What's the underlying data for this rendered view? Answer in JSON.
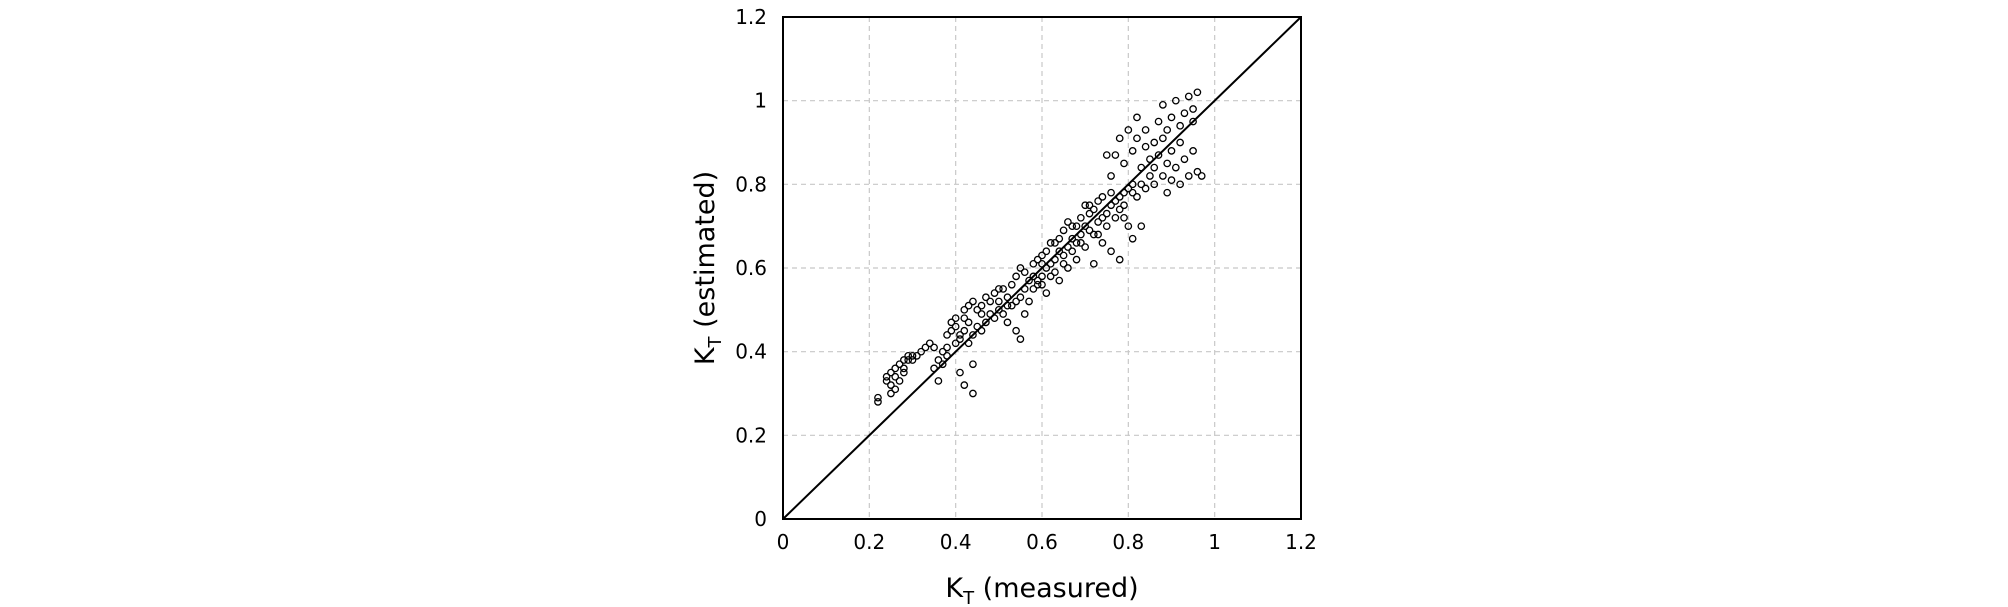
{
  "chart_data": {
    "type": "scatter",
    "xlabel": {
      "main": "K",
      "sub": "T",
      "rest": " (measured)"
    },
    "ylabel": {
      "main": "K",
      "sub": "T",
      "rest": " (estimated)"
    },
    "xlim": [
      0,
      1.2
    ],
    "ylim": [
      0,
      1.2
    ],
    "x_ticks": [
      "0",
      "0.2",
      "0.4",
      "0.6",
      "0.8",
      "1",
      "1.2"
    ],
    "y_ticks": [
      "0",
      "0.2",
      "0.4",
      "0.6",
      "0.8",
      "1",
      "1.2"
    ],
    "grid": true,
    "reference_line": {
      "type": "identity",
      "from": [
        0,
        0
      ],
      "to": [
        1.2,
        1.2
      ]
    },
    "series": [
      {
        "marker": "open-circle",
        "points": [
          [
            0.22,
            0.29
          ],
          [
            0.22,
            0.28
          ],
          [
            0.24,
            0.34
          ],
          [
            0.24,
            0.33
          ],
          [
            0.25,
            0.32
          ],
          [
            0.25,
            0.35
          ],
          [
            0.26,
            0.36
          ],
          [
            0.26,
            0.31
          ],
          [
            0.27,
            0.37
          ],
          [
            0.27,
            0.33
          ],
          [
            0.28,
            0.38
          ],
          [
            0.28,
            0.35
          ],
          [
            0.29,
            0.38
          ],
          [
            0.29,
            0.39
          ],
          [
            0.3,
            0.38
          ],
          [
            0.31,
            0.39
          ],
          [
            0.32,
            0.4
          ],
          [
            0.33,
            0.41
          ],
          [
            0.34,
            0.42
          ],
          [
            0.35,
            0.36
          ],
          [
            0.36,
            0.33
          ],
          [
            0.36,
            0.38
          ],
          [
            0.37,
            0.37
          ],
          [
            0.37,
            0.4
          ],
          [
            0.38,
            0.41
          ],
          [
            0.38,
            0.44
          ],
          [
            0.39,
            0.45
          ],
          [
            0.39,
            0.47
          ],
          [
            0.4,
            0.46
          ],
          [
            0.4,
            0.48
          ],
          [
            0.4,
            0.42
          ],
          [
            0.41,
            0.43
          ],
          [
            0.41,
            0.44
          ],
          [
            0.41,
            0.35
          ],
          [
            0.42,
            0.45
          ],
          [
            0.42,
            0.5
          ],
          [
            0.42,
            0.32
          ],
          [
            0.43,
            0.51
          ],
          [
            0.43,
            0.47
          ],
          [
            0.43,
            0.42
          ],
          [
            0.44,
            0.44
          ],
          [
            0.44,
            0.52
          ],
          [
            0.44,
            0.3
          ],
          [
            0.44,
            0.37
          ],
          [
            0.45,
            0.5
          ],
          [
            0.45,
            0.46
          ],
          [
            0.46,
            0.51
          ],
          [
            0.46,
            0.45
          ],
          [
            0.47,
            0.47
          ],
          [
            0.47,
            0.53
          ],
          [
            0.48,
            0.52
          ],
          [
            0.48,
            0.49
          ],
          [
            0.49,
            0.54
          ],
          [
            0.49,
            0.48
          ],
          [
            0.5,
            0.5
          ],
          [
            0.5,
            0.52
          ],
          [
            0.51,
            0.55
          ],
          [
            0.51,
            0.49
          ],
          [
            0.52,
            0.53
          ],
          [
            0.52,
            0.47
          ],
          [
            0.53,
            0.56
          ],
          [
            0.53,
            0.51
          ],
          [
            0.54,
            0.52
          ],
          [
            0.54,
            0.58
          ],
          [
            0.54,
            0.45
          ],
          [
            0.55,
            0.53
          ],
          [
            0.55,
            0.43
          ],
          [
            0.55,
            0.6
          ],
          [
            0.56,
            0.55
          ],
          [
            0.56,
            0.49
          ],
          [
            0.57,
            0.57
          ],
          [
            0.57,
            0.52
          ],
          [
            0.58,
            0.58
          ],
          [
            0.58,
            0.61
          ],
          [
            0.58,
            0.55
          ],
          [
            0.59,
            0.56
          ],
          [
            0.59,
            0.62
          ],
          [
            0.59,
            0.57
          ],
          [
            0.6,
            0.58
          ],
          [
            0.6,
            0.63
          ],
          [
            0.6,
            0.56
          ],
          [
            0.61,
            0.6
          ],
          [
            0.61,
            0.64
          ],
          [
            0.61,
            0.54
          ],
          [
            0.62,
            0.61
          ],
          [
            0.62,
            0.58
          ],
          [
            0.62,
            0.66
          ],
          [
            0.63,
            0.62
          ],
          [
            0.63,
            0.59
          ],
          [
            0.64,
            0.64
          ],
          [
            0.64,
            0.67
          ],
          [
            0.64,
            0.57
          ],
          [
            0.65,
            0.63
          ],
          [
            0.65,
            0.69
          ],
          [
            0.66,
            0.65
          ],
          [
            0.66,
            0.6
          ],
          [
            0.66,
            0.71
          ],
          [
            0.67,
            0.64
          ],
          [
            0.67,
            0.67
          ],
          [
            0.68,
            0.7
          ],
          [
            0.68,
            0.66
          ],
          [
            0.68,
            0.62
          ],
          [
            0.69,
            0.72
          ],
          [
            0.69,
            0.68
          ],
          [
            0.7,
            0.7
          ],
          [
            0.7,
            0.65
          ],
          [
            0.7,
            0.75
          ],
          [
            0.71,
            0.73
          ],
          [
            0.71,
            0.69
          ],
          [
            0.72,
            0.74
          ],
          [
            0.72,
            0.68
          ],
          [
            0.72,
            0.61
          ],
          [
            0.73,
            0.76
          ],
          [
            0.73,
            0.71
          ],
          [
            0.74,
            0.72
          ],
          [
            0.74,
            0.77
          ],
          [
            0.74,
            0.66
          ],
          [
            0.75,
            0.73
          ],
          [
            0.75,
            0.7
          ],
          [
            0.75,
            0.87
          ],
          [
            0.76,
            0.75
          ],
          [
            0.76,
            0.78
          ],
          [
            0.76,
            0.64
          ],
          [
            0.77,
            0.76
          ],
          [
            0.77,
            0.72
          ],
          [
            0.77,
            0.87
          ],
          [
            0.78,
            0.77
          ],
          [
            0.78,
            0.74
          ],
          [
            0.78,
            0.91
          ],
          [
            0.78,
            0.62
          ],
          [
            0.79,
            0.78
          ],
          [
            0.79,
            0.75
          ],
          [
            0.79,
            0.85
          ],
          [
            0.8,
            0.79
          ],
          [
            0.8,
            0.7
          ],
          [
            0.8,
            0.93
          ],
          [
            0.81,
            0.78
          ],
          [
            0.81,
            0.88
          ],
          [
            0.81,
            0.67
          ],
          [
            0.82,
            0.77
          ],
          [
            0.82,
            0.96
          ],
          [
            0.82,
            0.91
          ],
          [
            0.83,
            0.8
          ],
          [
            0.83,
            0.84
          ],
          [
            0.83,
            0.7
          ],
          [
            0.84,
            0.89
          ],
          [
            0.84,
            0.93
          ],
          [
            0.85,
            0.82
          ],
          [
            0.85,
            0.86
          ],
          [
            0.86,
            0.84
          ],
          [
            0.86,
            0.8
          ],
          [
            0.87,
            0.95
          ],
          [
            0.87,
            0.87
          ],
          [
            0.88,
            0.82
          ],
          [
            0.88,
            0.99
          ],
          [
            0.88,
            0.91
          ],
          [
            0.89,
            0.85
          ],
          [
            0.89,
            0.93
          ],
          [
            0.9,
            0.96
          ],
          [
            0.9,
            0.81
          ],
          [
            0.9,
            0.88
          ],
          [
            0.91,
            1.0
          ],
          [
            0.91,
            0.84
          ],
          [
            0.92,
            0.94
          ],
          [
            0.92,
            0.8
          ],
          [
            0.93,
            0.97
          ],
          [
            0.93,
            0.86
          ],
          [
            0.94,
            1.01
          ],
          [
            0.94,
            0.82
          ],
          [
            0.95,
            0.98
          ],
          [
            0.95,
            0.88
          ],
          [
            0.96,
            1.02
          ],
          [
            0.96,
            0.83
          ],
          [
            0.97,
            0.82
          ],
          [
            0.25,
            0.3
          ],
          [
            0.26,
            0.34
          ],
          [
            0.28,
            0.36
          ],
          [
            0.3,
            0.39
          ],
          [
            0.35,
            0.41
          ],
          [
            0.38,
            0.39
          ],
          [
            0.42,
            0.48
          ],
          [
            0.46,
            0.49
          ],
          [
            0.5,
            0.55
          ],
          [
            0.52,
            0.51
          ],
          [
            0.56,
            0.59
          ],
          [
            0.6,
            0.61
          ],
          [
            0.63,
            0.66
          ],
          [
            0.65,
            0.61
          ],
          [
            0.67,
            0.7
          ],
          [
            0.69,
            0.66
          ],
          [
            0.71,
            0.75
          ],
          [
            0.73,
            0.68
          ],
          [
            0.76,
            0.82
          ],
          [
            0.79,
            0.72
          ],
          [
            0.81,
            0.8
          ],
          [
            0.84,
            0.79
          ],
          [
            0.86,
            0.9
          ],
          [
            0.89,
            0.78
          ],
          [
            0.92,
            0.9
          ],
          [
            0.95,
            0.95
          ]
        ]
      }
    ]
  }
}
